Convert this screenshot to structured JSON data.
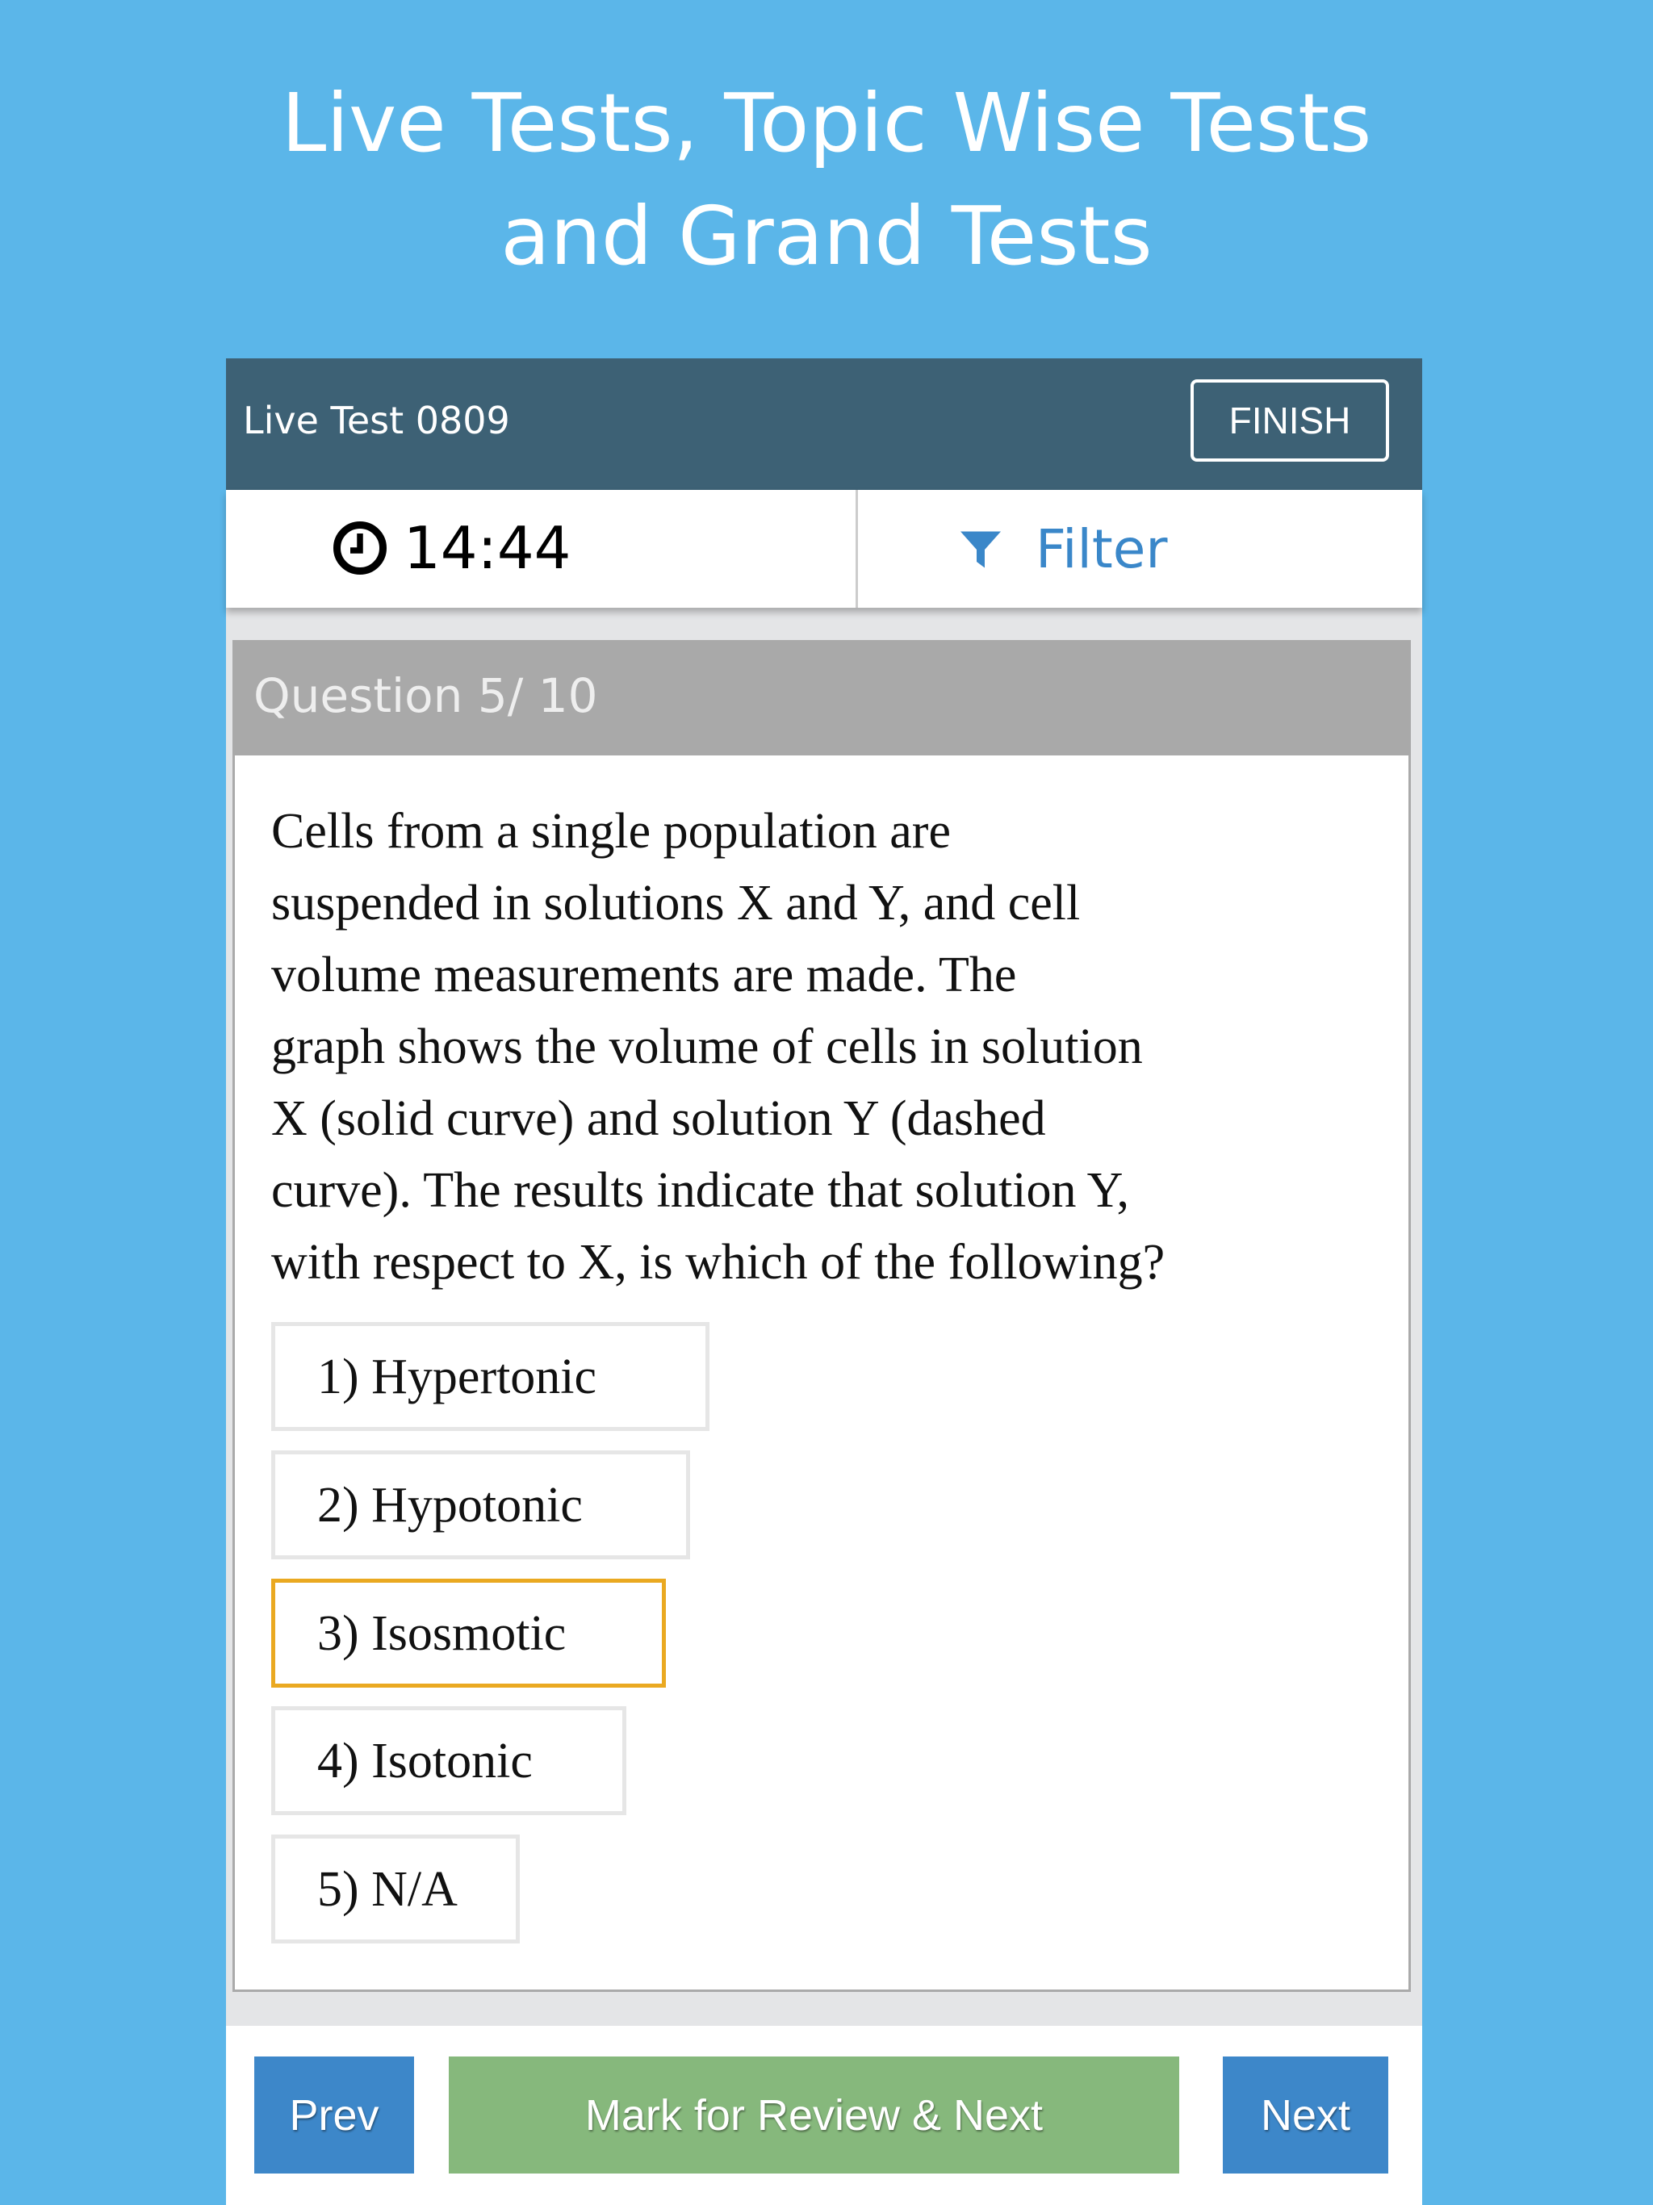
{
  "promo": {
    "line1": "Live Tests, Topic Wise Tests",
    "line2": "and Grand Tests"
  },
  "header": {
    "title": "Live Test 0809",
    "finish_label": "FINISH"
  },
  "toolbar": {
    "timer": "14:44",
    "timer_icon": "clock-icon",
    "filter_label": "Filter",
    "filter_icon": "funnel-icon"
  },
  "question": {
    "counter": "Question 5/ 10",
    "text_lines": [
      "Cells from a single population are",
      "suspended in solutions X and Y, and cell",
      "volume measurements are made. The",
      "graph shows the volume of cells in solution",
      "X (solid curve) and solution Y (dashed",
      "curve). The results indicate that solution Y,",
      "with respect to X, is which of the following?"
    ],
    "options": [
      "1) Hypertonic",
      "2) Hypotonic",
      "3) Isosmotic",
      "4) Isotonic",
      "5) N/A"
    ],
    "selected_option": 3
  },
  "footer": {
    "prev_label": "Prev",
    "mark_label": "Mark for Review & Next",
    "next_label": "Next"
  },
  "colors": {
    "background": "#5bb6e9",
    "header": "#3d6175",
    "blue_button": "#3d87c9",
    "green_button": "#86b87c",
    "selected_border": "#eaa921"
  }
}
